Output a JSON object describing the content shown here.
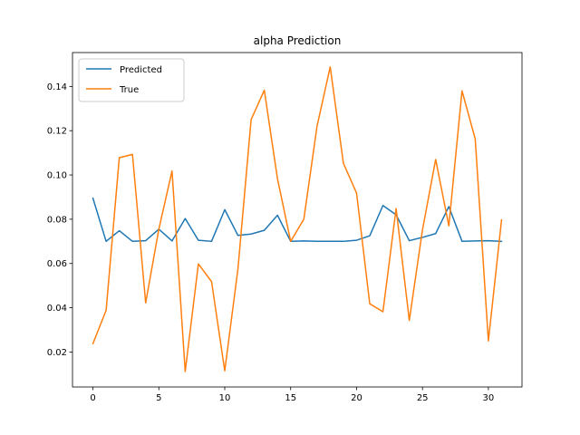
{
  "chart_data": {
    "type": "line",
    "title": "alpha Prediction",
    "xlabel": "",
    "ylabel": "",
    "xlim": [
      -1.55,
      32.55
    ],
    "ylim": [
      0.0042,
      0.1553
    ],
    "xticks": [
      0,
      5,
      10,
      15,
      20,
      25,
      30
    ],
    "yticks": [
      0.02,
      0.04,
      0.06,
      0.08,
      0.1,
      0.12,
      0.14
    ],
    "ytick_labels": [
      "0.02",
      "0.04",
      "0.06",
      "0.08",
      "0.10",
      "0.12",
      "0.14"
    ],
    "grid": false,
    "legend_position": "top-left",
    "x": [
      0,
      1,
      2,
      3,
      4,
      5,
      6,
      7,
      8,
      9,
      10,
      11,
      12,
      13,
      14,
      15,
      16,
      17,
      18,
      19,
      20,
      21,
      22,
      23,
      24,
      25,
      26,
      27,
      28,
      29,
      30,
      31
    ],
    "series": [
      {
        "name": "Predicted",
        "color": "#1f77b4",
        "values": [
          0.0895,
          0.07,
          0.0748,
          0.07,
          0.0703,
          0.0755,
          0.0702,
          0.0803,
          0.0705,
          0.07,
          0.0843,
          0.0727,
          0.0733,
          0.075,
          0.0818,
          0.07,
          0.0702,
          0.07,
          0.07,
          0.07,
          0.0705,
          0.0725,
          0.0862,
          0.082,
          0.0703,
          0.0718,
          0.0735,
          0.0857,
          0.07,
          0.0702,
          0.0703,
          0.07
        ]
      },
      {
        "name": "True",
        "color": "#ff7f0e",
        "values": [
          0.0238,
          0.0388,
          0.1078,
          0.1093,
          0.0422,
          0.0755,
          0.1018,
          0.0112,
          0.0598,
          0.0518,
          0.0115,
          0.0575,
          0.125,
          0.1383,
          0.0983,
          0.07,
          0.08,
          0.122,
          0.1488,
          0.1053,
          0.0918,
          0.0418,
          0.0382,
          0.0848,
          0.0343,
          0.0752,
          0.107,
          0.077,
          0.138,
          0.1163,
          0.025,
          0.0797
        ]
      }
    ]
  }
}
